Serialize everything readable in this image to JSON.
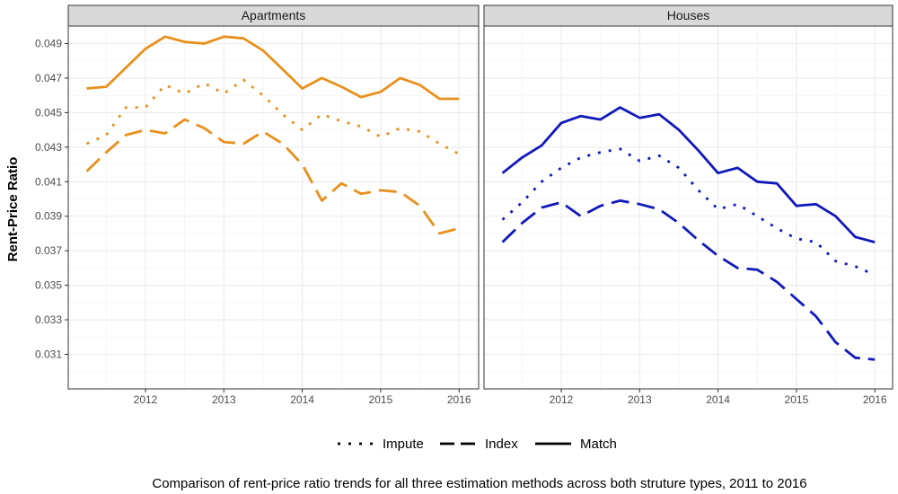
{
  "chart_data": {
    "type": "line",
    "ylabel": "Rent-Price Ratio",
    "caption": "Comparison of rent-price ratio trends for all three estimation methods across both struture types, 2011 to 2016",
    "x_ticks": [
      "2012",
      "2013",
      "2014",
      "2015",
      "2016"
    ],
    "y_ticks": [
      "0.031",
      "0.033",
      "0.035",
      "0.037",
      "0.039",
      "0.041",
      "0.043",
      "0.045",
      "0.047",
      "0.049"
    ],
    "xlim": [
      2011.25,
      2016.25
    ],
    "ylim": [
      0.029,
      0.05
    ],
    "grid": true,
    "legend_position": "bottom",
    "legend": [
      {
        "label": "Impute",
        "style": "dotted"
      },
      {
        "label": "Index",
        "style": "dashed"
      },
      {
        "label": "Match",
        "style": "solid"
      }
    ],
    "x": [
      2011.25,
      2011.5,
      2011.75,
      2012.0,
      2012.25,
      2012.5,
      2012.75,
      2013.0,
      2013.25,
      2013.5,
      2013.75,
      2014.0,
      2014.25,
      2014.5,
      2014.75,
      2015.0,
      2015.25,
      2015.5,
      2015.75,
      2016.0
    ],
    "panels": [
      {
        "title": "Apartments",
        "color": "#E8901C",
        "series": [
          {
            "name": "Impute",
            "style": "dotted",
            "values": [
              0.0432,
              0.0437,
              0.0453,
              0.0453,
              0.0466,
              0.0461,
              0.0467,
              0.0461,
              0.0469,
              0.046,
              0.0449,
              0.044,
              0.0449,
              0.0445,
              0.0442,
              0.0436,
              0.0441,
              0.0439,
              0.0432,
              0.0426
            ]
          },
          {
            "name": "Index",
            "style": "dashed",
            "values": [
              0.0416,
              0.0427,
              0.0437,
              0.044,
              0.0438,
              0.0446,
              0.0441,
              0.0433,
              0.0432,
              0.0439,
              0.0432,
              0.042,
              0.0399,
              0.0409,
              0.0403,
              0.0405,
              0.0404,
              0.0396,
              0.038,
              0.0383
            ]
          },
          {
            "name": "Match",
            "style": "solid",
            "values": [
              0.0464,
              0.0465,
              0.0476,
              0.0487,
              0.0494,
              0.0491,
              0.049,
              0.0494,
              0.0493,
              0.0486,
              0.0475,
              0.0464,
              0.047,
              0.0465,
              0.0459,
              0.0462,
              0.047,
              0.0466,
              0.0458,
              0.0458
            ]
          }
        ]
      },
      {
        "title": "Houses",
        "color": "#1119BB",
        "series": [
          {
            "name": "Impute",
            "style": "dotted",
            "values": [
              0.0388,
              0.0398,
              0.041,
              0.0418,
              0.0424,
              0.0427,
              0.0429,
              0.0422,
              0.0425,
              0.0418,
              0.0405,
              0.0394,
              0.0397,
              0.039,
              0.0383,
              0.0377,
              0.0375,
              0.0364,
              0.0361,
              0.0356
            ]
          },
          {
            "name": "Index",
            "style": "dashed",
            "values": [
              0.0375,
              0.0386,
              0.0395,
              0.0398,
              0.039,
              0.0396,
              0.0399,
              0.0397,
              0.0394,
              0.0386,
              0.0376,
              0.0367,
              0.036,
              0.0359,
              0.0352,
              0.0342,
              0.0332,
              0.0317,
              0.0308,
              0.0307
            ]
          },
          {
            "name": "Match",
            "style": "solid",
            "values": [
              0.0415,
              0.0424,
              0.0431,
              0.0444,
              0.0448,
              0.0446,
              0.0453,
              0.0447,
              0.0449,
              0.044,
              0.0428,
              0.0415,
              0.0418,
              0.041,
              0.0409,
              0.0396,
              0.0397,
              0.039,
              0.0378,
              0.0375
            ]
          }
        ]
      }
    ]
  }
}
